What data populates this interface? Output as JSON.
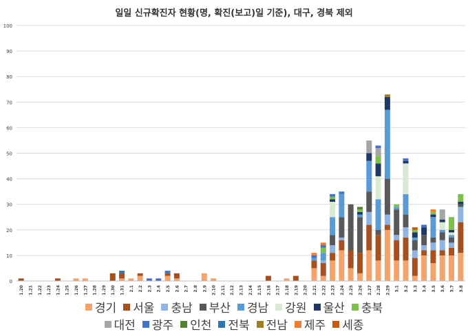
{
  "chart_data": {
    "type": "bar",
    "stacked": true,
    "title": "일일 신규확진자 현황(명, 확진(보고)일 기준), 대구, 경북 제외",
    "xlabel": "",
    "ylabel": "",
    "ylim": [
      0,
      100
    ],
    "yticks": [
      0,
      10,
      20,
      30,
      40,
      50,
      60,
      70,
      80,
      90,
      100
    ],
    "grid": true,
    "legend_position": "bottom",
    "categories": [
      "1.20",
      "1.21",
      "1.22",
      "1.23",
      "1.24",
      "1.25",
      "1.26",
      "1.27",
      "1.28",
      "1.29",
      "1.30",
      "1.31",
      "2.1",
      "2.2",
      "2.3",
      "2.4",
      "2.5",
      "2.6",
      "2.7",
      "2.8",
      "2.9",
      "2.10",
      "2.11",
      "2.12",
      "2.13",
      "2.14",
      "2.15",
      "2.16",
      "2.17",
      "2.18",
      "2.19",
      "2.20",
      "2.21",
      "2.22",
      "2.23",
      "2.24",
      "2.25",
      "2.26",
      "2.27",
      "2.28",
      "2.29",
      "3.1",
      "3.2",
      "3.3",
      "3.4",
      "3.5",
      "3.6",
      "3.7",
      "3.8"
    ],
    "series": [
      {
        "name": "경기",
        "color": "#F4A36B",
        "values": [
          0,
          0,
          0,
          0,
          0,
          0,
          1,
          1,
          0,
          0,
          0,
          1,
          1,
          2,
          0,
          0,
          2,
          1,
          0,
          0,
          3,
          1,
          0,
          0,
          0,
          0,
          0,
          0,
          0,
          1,
          0,
          0,
          5,
          2,
          8,
          12,
          5,
          3,
          12,
          8,
          20,
          8,
          8,
          2,
          10,
          7,
          10,
          10,
          11
        ]
      },
      {
        "name": "서울",
        "color": "#A5501E",
        "values": [
          1,
          0,
          0,
          0,
          1,
          0,
          0,
          0,
          0,
          0,
          3,
          2,
          0,
          1,
          0,
          0,
          1,
          2,
          0,
          0,
          0,
          0,
          0,
          0,
          0,
          0,
          0,
          2,
          0,
          0,
          2,
          0,
          3,
          5,
          3,
          4,
          7,
          8,
          10,
          10,
          2,
          8,
          9,
          7,
          2,
          5,
          2,
          3,
          12
        ]
      },
      {
        "name": "충남",
        "color": "#8DB4E2",
        "values": [
          0,
          0,
          0,
          0,
          0,
          0,
          0,
          0,
          0,
          0,
          0,
          0,
          0,
          0,
          0,
          0,
          0,
          0,
          0,
          0,
          0,
          0,
          0,
          0,
          0,
          0,
          0,
          0,
          0,
          0,
          0,
          0,
          0,
          1,
          3,
          1,
          0,
          0,
          5,
          0,
          4,
          2,
          4,
          3,
          2,
          3,
          4,
          2,
          6
        ]
      },
      {
        "name": "부산",
        "color": "#595959",
        "values": [
          0,
          0,
          0,
          0,
          0,
          0,
          0,
          0,
          0,
          0,
          0,
          0,
          0,
          0,
          0,
          0,
          0,
          0,
          0,
          0,
          0,
          0,
          0,
          0,
          0,
          0,
          0,
          0,
          0,
          0,
          0,
          0,
          0,
          0,
          4,
          8,
          18,
          14,
          8,
          2,
          14,
          10,
          5,
          4,
          4,
          2,
          3,
          2,
          1
        ]
      },
      {
        "name": "경남",
        "color": "#5B9BD5",
        "values": [
          0,
          0,
          0,
          0,
          0,
          0,
          0,
          0,
          0,
          0,
          0,
          0,
          0,
          0,
          0,
          0,
          0,
          0,
          0,
          0,
          0,
          0,
          0,
          0,
          0,
          0,
          0,
          0,
          0,
          0,
          0,
          0,
          1,
          3,
          7,
          9,
          0,
          1,
          12,
          12,
          27,
          1,
          8,
          1,
          0,
          8,
          1,
          1,
          0
        ]
      },
      {
        "name": "강원",
        "color": "#D9EAD3",
        "values": [
          0,
          0,
          0,
          0,
          0,
          0,
          0,
          0,
          0,
          0,
          0,
          0,
          0,
          0,
          0,
          0,
          0,
          0,
          0,
          0,
          0,
          0,
          0,
          0,
          0,
          0,
          0,
          0,
          0,
          0,
          0,
          0,
          0,
          0,
          6,
          0,
          0,
          0,
          0,
          9,
          0,
          0,
          12,
          0,
          0,
          0,
          3,
          1,
          0
        ]
      },
      {
        "name": "울산",
        "color": "#1F3864",
        "values": [
          0,
          0,
          0,
          0,
          0,
          0,
          0,
          0,
          0,
          0,
          0,
          0,
          0,
          0,
          0,
          0,
          0,
          0,
          0,
          0,
          0,
          0,
          0,
          0,
          0,
          0,
          0,
          0,
          0,
          0,
          0,
          0,
          0,
          0,
          1,
          0,
          0,
          1,
          3,
          5,
          5,
          0,
          1,
          2,
          3,
          1,
          1,
          1,
          1
        ]
      },
      {
        "name": "충북",
        "color": "#7FBF4D",
        "values": [
          0,
          0,
          0,
          0,
          0,
          0,
          0,
          0,
          0,
          0,
          0,
          0,
          0,
          0,
          0,
          0,
          0,
          0,
          0,
          0,
          0,
          0,
          0,
          0,
          0,
          0,
          0,
          0,
          0,
          0,
          0,
          0,
          0,
          2,
          1,
          0,
          0,
          1,
          0,
          3,
          0,
          1,
          0,
          1,
          0,
          1,
          0,
          5,
          3
        ]
      },
      {
        "name": "대전",
        "color": "#A6A6A6",
        "values": [
          0,
          0,
          0,
          0,
          0,
          0,
          0,
          0,
          0,
          0,
          0,
          0,
          0,
          0,
          0,
          0,
          0,
          0,
          0,
          0,
          0,
          0,
          0,
          0,
          0,
          0,
          0,
          0,
          0,
          0,
          0,
          0,
          0,
          0,
          0,
          0,
          0,
          0,
          5,
          3,
          0,
          0,
          0,
          0,
          0,
          0,
          4,
          0,
          0
        ]
      },
      {
        "name": "광주",
        "color": "#4472C4",
        "values": [
          0,
          0,
          0,
          0,
          0,
          0,
          0,
          0,
          0,
          0,
          0,
          0,
          0,
          0,
          1,
          1,
          1,
          0,
          0,
          0,
          0,
          0,
          0,
          0,
          0,
          0,
          0,
          0,
          0,
          0,
          0,
          0,
          1,
          1,
          1,
          1,
          0,
          0,
          0,
          1,
          0,
          0,
          1,
          0,
          1,
          0,
          0,
          0,
          0
        ]
      },
      {
        "name": "인천",
        "color": "#548235",
        "values": [
          0,
          0,
          0,
          0,
          0,
          0,
          0,
          0,
          0,
          0,
          0,
          0,
          0,
          0,
          0,
          0,
          0,
          0,
          0,
          0,
          0,
          0,
          0,
          0,
          0,
          0,
          0,
          0,
          0,
          0,
          0,
          0,
          0,
          0,
          0,
          0,
          0,
          1,
          0,
          0,
          0,
          0,
          0,
          0,
          0,
          0,
          0,
          0,
          0
        ]
      },
      {
        "name": "전북",
        "color": "#2E75B6",
        "values": [
          0,
          0,
          0,
          0,
          0,
          0,
          0,
          0,
          0,
          0,
          0,
          1,
          0,
          0,
          0,
          0,
          0,
          0,
          0,
          0,
          0,
          0,
          0,
          0,
          0,
          0,
          0,
          0,
          0,
          0,
          0,
          0,
          0,
          0,
          0,
          0,
          0,
          0,
          0,
          0,
          0,
          0,
          0,
          0,
          0,
          0,
          0,
          0,
          0
        ]
      },
      {
        "name": "전남",
        "color": "#9C7F1F",
        "values": [
          0,
          0,
          0,
          0,
          0,
          0,
          0,
          0,
          0,
          0,
          0,
          0,
          0,
          0,
          0,
          0,
          0,
          0,
          0,
          0,
          0,
          0,
          0,
          0,
          0,
          0,
          0,
          0,
          0,
          0,
          0,
          0,
          0,
          0,
          0,
          0,
          0,
          0,
          0,
          0,
          1,
          0,
          0,
          0,
          0,
          0,
          0,
          0,
          0
        ]
      },
      {
        "name": "제주",
        "color": "#ED7D31",
        "values": [
          0,
          0,
          0,
          0,
          0,
          0,
          0,
          0,
          0,
          0,
          0,
          0,
          0,
          0,
          0,
          0,
          0,
          0,
          0,
          0,
          0,
          0,
          0,
          0,
          0,
          0,
          0,
          0,
          0,
          0,
          0,
          0,
          1,
          1,
          0,
          0,
          0,
          0,
          0,
          0,
          0,
          0,
          0,
          0,
          0,
          1,
          0,
          0,
          0
        ]
      },
      {
        "name": "세종",
        "color": "#C55A11",
        "values": [
          0,
          0,
          0,
          0,
          0,
          0,
          0,
          0,
          0,
          0,
          0,
          0,
          0,
          0,
          0,
          0,
          0,
          0,
          0,
          0,
          0,
          0,
          0,
          0,
          0,
          0,
          0,
          0,
          0,
          0,
          0,
          0,
          0,
          0,
          0,
          0,
          0,
          0,
          0,
          0,
          0,
          0,
          0,
          1,
          0,
          0,
          0,
          0,
          0
        ]
      }
    ]
  }
}
